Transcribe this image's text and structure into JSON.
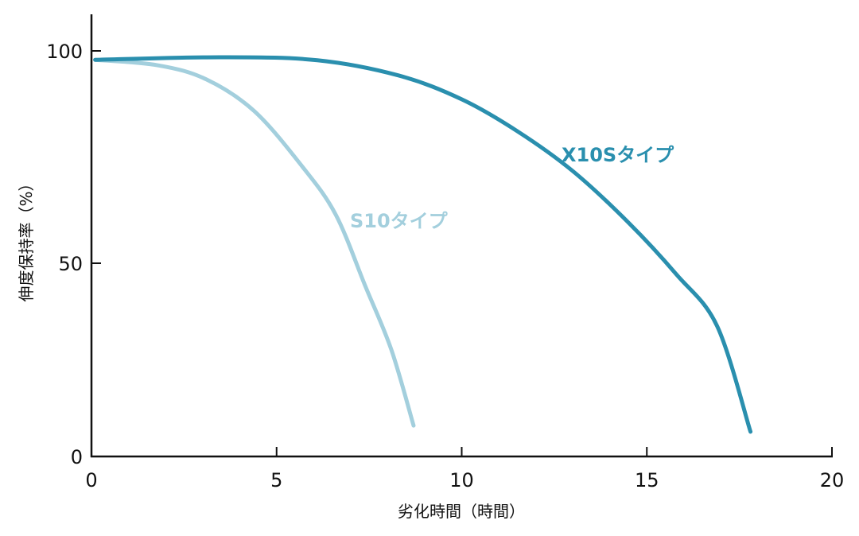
{
  "chart_data": {
    "type": "line",
    "title": "",
    "xlabel": "劣化時間（時間）",
    "ylabel": "伸度保持率（%）",
    "xlim": [
      0,
      20
    ],
    "ylim": [
      0,
      100
    ],
    "xticks": [
      0,
      5,
      10,
      15,
      20
    ],
    "yticks": [
      0,
      50,
      100
    ],
    "grid": false,
    "series": [
      {
        "name": "X10Sタイプ",
        "color": "#2a8fae",
        "label_at": [
          14.5,
          72
        ],
        "x": [
          0.1,
          3.5,
          6.1,
          8.3,
          10.0,
          11.5,
          13.0,
          14.5,
          15.8,
          16.9,
          17.8
        ],
        "y": [
          97.9,
          98.5,
          97.8,
          94.2,
          88.6,
          81.1,
          71.7,
          59.6,
          47.1,
          33.7,
          6.4
        ]
      },
      {
        "name": "S10タイプ",
        "color": "#a3cfdd",
        "label_at": [
          8.2,
          56
        ],
        "x": [
          0.1,
          1.8,
          3.1,
          4.4,
          5.7,
          6.6,
          7.4,
          8.1,
          8.7
        ],
        "y": [
          97.9,
          96.6,
          93.3,
          85.8,
          72.7,
          61.4,
          44.0,
          27.6,
          8.0
        ]
      }
    ]
  }
}
